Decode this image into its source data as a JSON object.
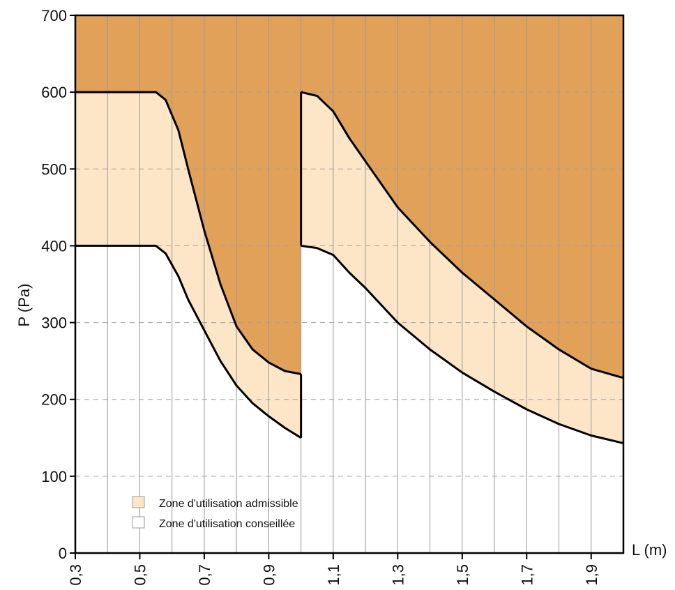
{
  "chart_data": {
    "type": "area",
    "title": "",
    "xlabel": "L (m)",
    "ylabel": "P (Pa)",
    "xlim": [
      0.3,
      2.0
    ],
    "ylim": [
      0,
      700
    ],
    "x_tick_labels": [
      "0,3",
      "0,5",
      "0,7",
      "0,9",
      "1,1",
      "1,3",
      "1,5",
      "1,7",
      "1,9"
    ],
    "x_ticks": [
      0.3,
      0.5,
      0.7,
      0.9,
      1.1,
      1.3,
      1.5,
      1.7,
      1.9
    ],
    "y_ticks": [
      0,
      100,
      200,
      300,
      400,
      500,
      600,
      700
    ],
    "y_tick_labels": [
      "0",
      "100",
      "200",
      "300",
      "400",
      "500",
      "600",
      "700"
    ],
    "grid": {
      "vertical_lines_x": [
        0.4,
        0.5,
        0.6,
        0.7,
        0.8,
        0.9,
        1.0,
        1.1,
        1.2,
        1.3,
        1.4,
        1.5,
        1.6,
        1.7,
        1.8,
        1.9
      ],
      "horizontal_dashed_y": [
        100,
        200,
        300,
        400,
        500,
        600
      ]
    },
    "regions": [
      {
        "name": "Zone d'utilisation admissible",
        "color": "#fde6c7"
      },
      {
        "name": "Zone d'utilisation conseillée",
        "color": "#ffffff"
      },
      {
        "name": "",
        "color": "#e2a159"
      }
    ],
    "series": [
      {
        "name": "",
        "x": [
          0.3,
          0.55,
          0.58,
          0.62,
          0.65,
          0.7,
          0.75,
          0.8,
          0.85,
          0.9,
          0.95,
          1.0
        ],
        "values": [
          600,
          600,
          590,
          550,
          500,
          420,
          350,
          295,
          265,
          248,
          237,
          233
        ]
      },
      {
        "name": "",
        "x": [
          0.3,
          0.55,
          0.58,
          0.62,
          0.65,
          0.7,
          0.75,
          0.8,
          0.85,
          0.9,
          0.95,
          1.0
        ],
        "values": [
          400,
          400,
          390,
          360,
          330,
          290,
          250,
          218,
          195,
          178,
          163,
          150
        ]
      },
      {
        "name": "",
        "x": [
          1.0,
          1.05,
          1.1,
          1.15,
          1.2,
          1.3,
          1.4,
          1.5,
          1.6,
          1.7,
          1.8,
          1.9,
          2.0
        ],
        "values": [
          600,
          595,
          575,
          540,
          510,
          450,
          405,
          365,
          330,
          295,
          265,
          240,
          228
        ]
      },
      {
        "name": "",
        "x": [
          1.0,
          1.05,
          1.1,
          1.15,
          1.2,
          1.3,
          1.4,
          1.5,
          1.6,
          1.7,
          1.8,
          1.9,
          2.0
        ],
        "values": [
          400,
          397,
          388,
          365,
          345,
          300,
          265,
          235,
          210,
          187,
          168,
          153,
          143
        ]
      }
    ],
    "legend": {
      "placement": "bottom-left",
      "items": [
        {
          "label": "Zone d'utilisation admissible",
          "color": "#fde6c7"
        },
        {
          "label": "Zone d'utilisation conseillée",
          "color": "#ffffff"
        }
      ]
    }
  }
}
